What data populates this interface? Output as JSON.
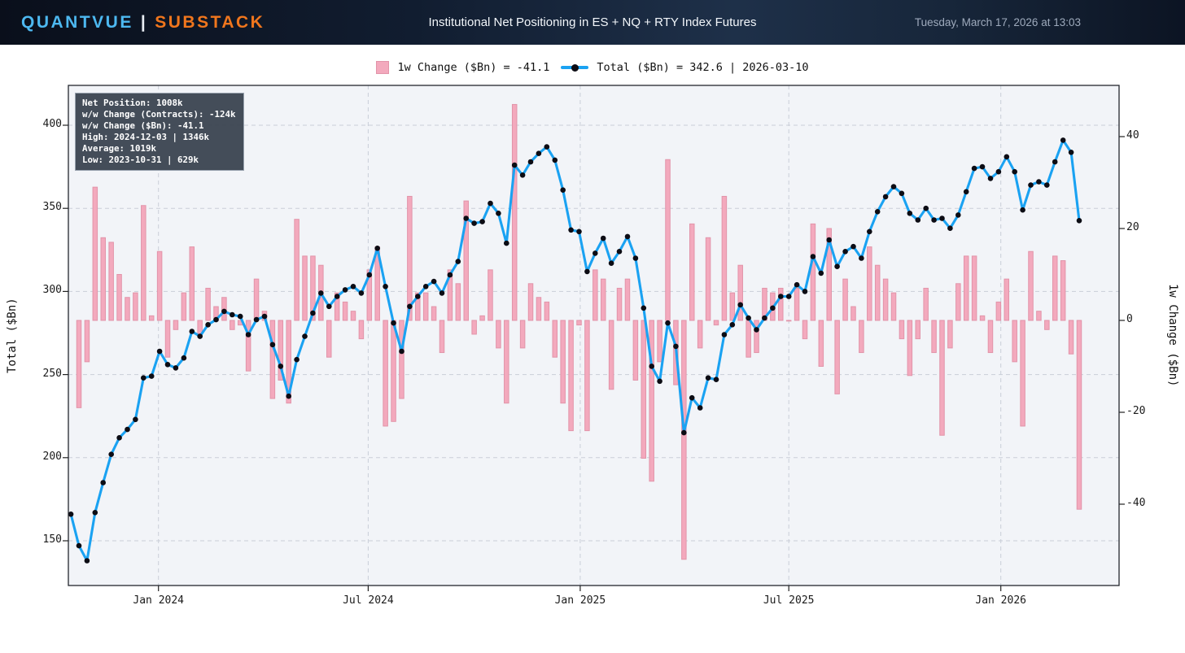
{
  "header": {
    "brand_left": "QUANTVUE",
    "brand_sep": "|",
    "brand_right": "SUBSTACK",
    "title": "Institutional Net Positioning in ES + NQ + RTY Index Futures",
    "datetime": "Tuesday, March 17, 2026 at 13:03"
  },
  "legend": {
    "bar_label": "1w Change ($Bn) = -41.1",
    "line_label": "Total ($Bn) = 342.6 | 2026-03-10"
  },
  "info_box": {
    "lines": [
      "Net Position: 1008k",
      "w/w Change (Contracts): -124k",
      "w/w Change ($Bn): -41.1",
      "High: 2024-12-03 | 1346k",
      "Average: 1019k",
      "Low: 2023-10-31 | 629k"
    ]
  },
  "axes": {
    "left_title": "Total ($Bn)",
    "right_title": "1w Change ($Bn)",
    "left_ticks": [
      400,
      350,
      300,
      250,
      200,
      150
    ],
    "right_ticks": [
      40,
      20,
      0,
      -20,
      -40
    ],
    "x_ticks": [
      {
        "label": "Jan 2024",
        "day": 76
      },
      {
        "label": "Jul 2024",
        "day": 258
      },
      {
        "label": "Jan 2025",
        "day": 442
      },
      {
        "label": "Jul 2025",
        "day": 623
      },
      {
        "label": "Jan 2026",
        "day": 807
      }
    ]
  },
  "chart_data": {
    "type": "line+bar",
    "title": "Institutional Net Positioning in ES + NQ + RTY Index Futures",
    "series_line_name": "Total ($Bn)",
    "series_bar_name": "1w Change ($Bn)",
    "start_date": "2023-10-17",
    "interval_days": 7,
    "end_date": "2026-03-10",
    "left_axis_range": [
      123,
      424
    ],
    "right_axis_range": [
      -57.7,
      51.2
    ],
    "bar_rule": "week_over_week_diff_of_total",
    "last_total": 342.6,
    "last_change": -41.1,
    "totals": [
      166,
      147,
      138,
      167,
      185,
      202,
      212,
      217,
      223,
      248,
      249,
      264,
      256,
      254,
      260,
      276,
      273,
      280,
      283,
      288,
      286,
      285,
      274,
      283,
      285,
      268,
      255,
      237,
      259,
      273,
      287,
      299,
      291,
      297,
      301,
      303,
      299,
      310,
      326,
      303,
      281,
      264,
      291,
      297,
      303,
      306,
      299,
      310,
      318,
      344,
      341,
      342,
      353,
      347,
      329,
      376,
      370,
      378,
      383,
      387,
      379,
      361,
      337,
      336,
      312,
      323,
      332,
      317,
      324,
      333,
      320,
      290,
      255,
      246,
      281,
      267,
      215,
      236,
      230,
      248,
      247,
      274,
      280,
      292,
      284,
      277,
      284,
      290,
      297,
      297,
      304,
      300,
      321,
      311,
      331,
      315,
      324,
      327,
      320,
      336,
      348,
      357,
      363,
      359,
      347,
      343,
      350,
      343,
      344,
      338,
      346,
      360,
      374,
      375,
      368,
      372,
      381,
      372,
      349,
      364,
      366,
      364,
      378,
      391,
      383.7,
      342.6
    ],
    "changes_overrides": {
      "108": -25
    },
    "colors": {
      "bar_fill": "#f3a9bd",
      "bar_edge": "#e294a9",
      "line": "#1aa2f2",
      "point": "#0c0c14",
      "plot_bg": "#f2f4f8",
      "grid": "#c9ced8",
      "border": "#23272e",
      "brand_blue": "#4db8f0",
      "brand_orange": "#f0761d"
    }
  }
}
